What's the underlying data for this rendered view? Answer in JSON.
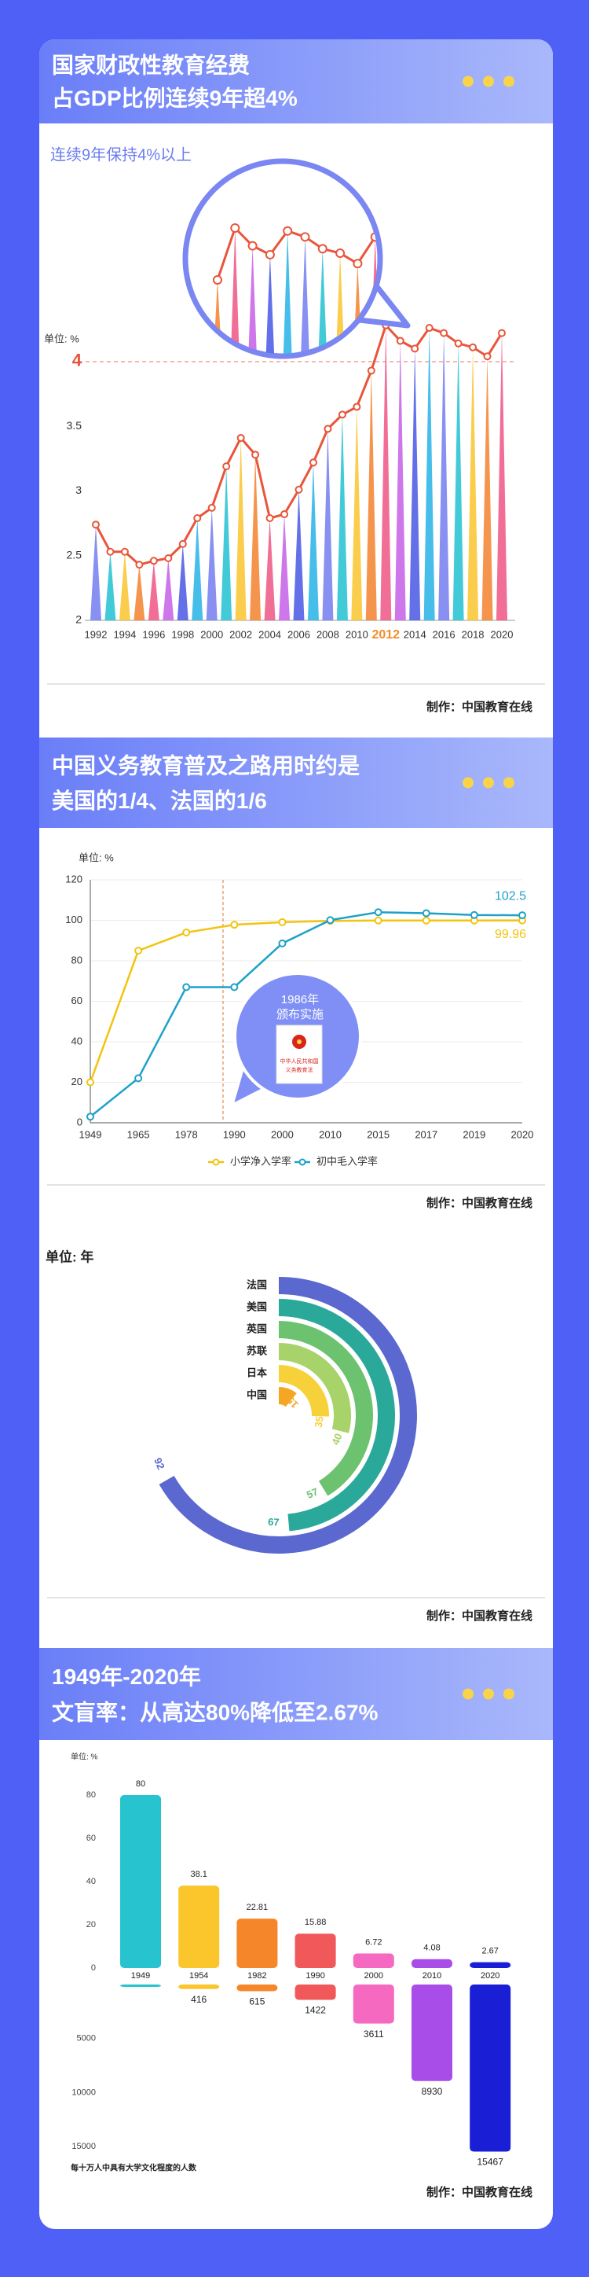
{
  "chart_data": [
    {
      "type": "spike_line",
      "title_lines": [
        "国家财政性教育经费",
        "占GDP比例连续9年超4%"
      ],
      "annotation": "连续9年保持4%以上",
      "y_label": "单位: %",
      "x": [
        1992,
        1993,
        1994,
        1995,
        1996,
        1997,
        1998,
        1999,
        2000,
        2001,
        2002,
        2003,
        2004,
        2005,
        2006,
        2007,
        2008,
        2009,
        2010,
        2011,
        2012,
        2013,
        2014,
        2015,
        2016,
        2017,
        2018,
        2019,
        2020
      ],
      "values": [
        2.74,
        2.53,
        2.53,
        2.43,
        2.46,
        2.48,
        2.59,
        2.79,
        2.87,
        3.19,
        3.41,
        3.28,
        2.79,
        2.82,
        3.01,
        3.22,
        3.48,
        3.59,
        3.65,
        3.93,
        4.28,
        4.16,
        4.1,
        4.26,
        4.22,
        4.14,
        4.11,
        4.04,
        4.22
      ],
      "colors": [
        "#7b84f0",
        "#2fc4d4",
        "#f9c83a",
        "#f48a3a",
        "#ef5f8c",
        "#c968e8",
        "#5261e6",
        "#33b6e8",
        "#7b84f0",
        "#2fc4d4",
        "#f9c83a",
        "#f48a3a",
        "#ef5f8c",
        "#c968e8",
        "#5261e6",
        "#33b6e8",
        "#7b84f0",
        "#2fc4d4",
        "#f9c83a",
        "#f48a3a",
        "#ef5f8c",
        "#c968e8",
        "#5261e6",
        "#33b6e8",
        "#7b84f0",
        "#2fc4d4",
        "#f9c83a",
        "#f48a3a",
        "#ef5f8c"
      ],
      "line_color": "#e8553a",
      "xlim": [
        1992,
        2020
      ],
      "xticks": [
        1992,
        1994,
        1996,
        1998,
        2000,
        2002,
        2004,
        2006,
        2008,
        2010,
        2012,
        2014,
        2016,
        2018,
        2020
      ],
      "xtick_highlight": 2012,
      "ylim": [
        2,
        4.4
      ],
      "yticks": [
        2,
        2.5,
        3,
        3.5,
        4
      ],
      "reference_line": 4,
      "source": "制作：中国教育在线"
    },
    {
      "type": "line",
      "title_lines": [
        "中国义务教育普及之路用时约是",
        "美国的1/4、法国的1/6"
      ],
      "y_label": "单位: %",
      "categories": [
        "1949",
        "1965",
        "1978",
        "1990",
        "2000",
        "2010",
        "2015",
        "2017",
        "2019",
        "2020"
      ],
      "series": [
        {
          "name": "小学净入学率",
          "color": "#f2c40f",
          "values": [
            20,
            85,
            94,
            97.8,
            99.1,
            99.7,
            99.9,
            99.9,
            99.9,
            99.96
          ]
        },
        {
          "name": "初中毛入学率",
          "color": "#1ea1c9",
          "values": [
            3,
            22,
            67,
            67,
            88.6,
            100.1,
            104,
            103.5,
            102.6,
            102.5
          ]
        }
      ],
      "ylim": [
        0,
        120
      ],
      "yticks": [
        0,
        20,
        40,
        60,
        80,
        100,
        120
      ],
      "grid": true,
      "legend": "bottom",
      "annotation": {
        "title": "1986年",
        "text": "颁布实施",
        "document": [
          "中华人民共和国",
          "义务教育法"
        ]
      },
      "source": "制作：中国教育在线"
    },
    {
      "type": "radial_bar",
      "y_label": "单位: 年",
      "categories": [
        "法国",
        "美国",
        "英国",
        "苏联",
        "日本",
        "中国"
      ],
      "values": [
        92,
        67,
        57,
        40,
        35,
        15
      ],
      "colors": [
        "#5a68cf",
        "#2aa99a",
        "#6cc26e",
        "#a8d26a",
        "#f7d13a",
        "#f5a623"
      ],
      "source": "制作：中国教育在线"
    },
    {
      "type": "mirrored_bar",
      "title_lines": [
        "1949年-2020年",
        "文盲率：从高达80%降低至2.67%"
      ],
      "y_label": "单位: %",
      "categories": [
        "1949",
        "1954",
        "1982",
        "1990",
        "2000",
        "2010",
        "2020"
      ],
      "colors": [
        "#27c4d0",
        "#fbc62c",
        "#f5872a",
        "#f0585a",
        "#f56ac0",
        "#a94de8",
        "#1a1fd6"
      ],
      "series": [
        {
          "values": [
            80,
            38.1,
            22.81,
            15.88,
            6.72,
            4.08,
            2.67
          ]
        },
        {
          "axis": "y2",
          "values": [
            100,
            416,
            615,
            1422,
            3611,
            8930,
            15467
          ],
          "value_labels": [
            null,
            "416",
            "615",
            "1422",
            "3611",
            "8930",
            "15467"
          ]
        }
      ],
      "ylim": [
        0,
        80
      ],
      "yticks": [
        0,
        20,
        40,
        60,
        80
      ],
      "y2lim": [
        0,
        15500
      ],
      "y2ticks": [
        5000,
        10000,
        15000
      ],
      "y2_label": "每十万人中具有大学文化程度的人数",
      "source": "制作：中国教育在线"
    }
  ]
}
